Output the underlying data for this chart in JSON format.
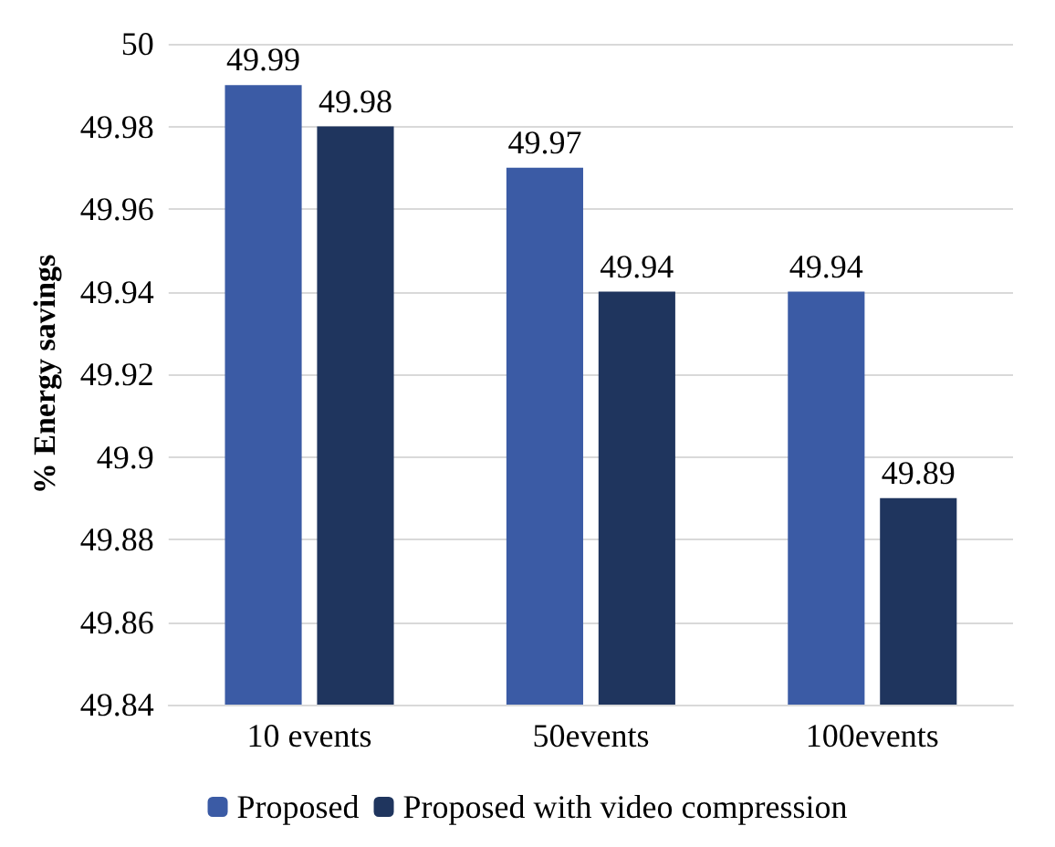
{
  "chart_data": {
    "type": "bar",
    "ylabel": "% Energy savings",
    "categories": [
      "10 events",
      "50events",
      "100events"
    ],
    "series": [
      {
        "name": "Proposed",
        "color": "#3b5ba5",
        "values": [
          49.99,
          49.97,
          49.94
        ]
      },
      {
        "name": "Proposed with video compression",
        "color": "#1f355e",
        "values": [
          49.98,
          49.94,
          49.89
        ]
      }
    ],
    "ylim": [
      49.84,
      50
    ],
    "yticks": [
      49.84,
      49.86,
      49.88,
      49.9,
      49.92,
      49.94,
      49.96,
      49.98,
      50
    ],
    "grid": "y",
    "legend": "bottom",
    "data_labels": true
  }
}
